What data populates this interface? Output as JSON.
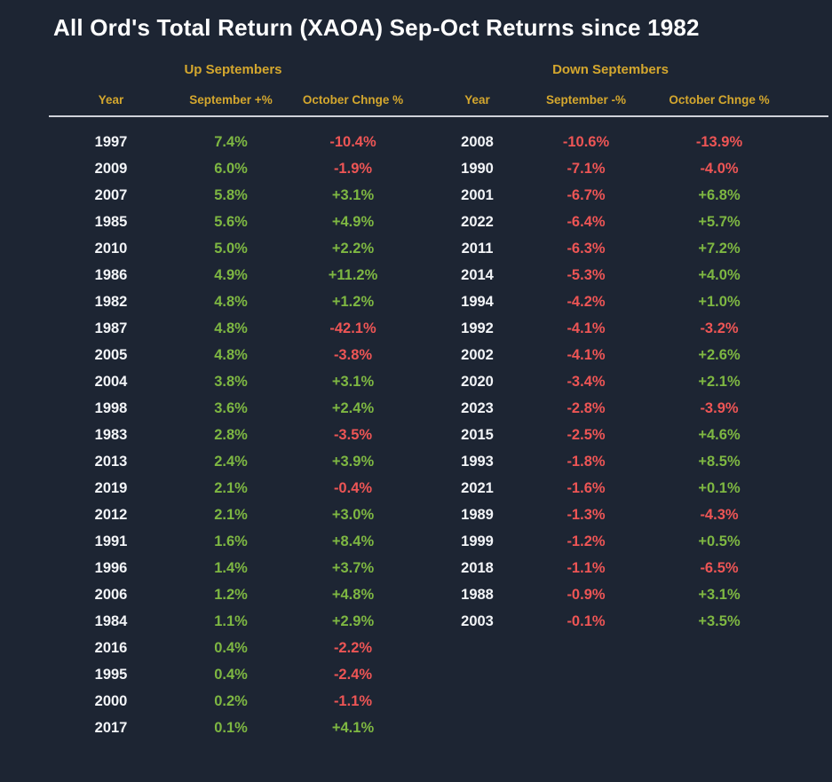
{
  "title": "All Ord's Total Return (XAOA) Sep-Oct Returns since 1982",
  "colors": {
    "background": "#1d2533",
    "title": "#ffffff",
    "gold": "#d4a72e",
    "green": "#7eb742",
    "red": "#ed5555",
    "year": "#f2f4f7",
    "rule": "#cfd2d9"
  },
  "chart_data": {
    "type": "table",
    "title": "All Ord's Total Return (XAOA) Sep-Oct Returns since 1982",
    "layout": {
      "grid": false,
      "sections_side_by_side": true
    },
    "sections": [
      {
        "name": "Up Septembers",
        "columns": [
          "Year",
          "September +%",
          "October Chnge %"
        ],
        "rows": [
          {
            "year": "1997",
            "september": "7.4%",
            "october": "-10.4%"
          },
          {
            "year": "2009",
            "september": "6.0%",
            "october": "-1.9%"
          },
          {
            "year": "2007",
            "september": "5.8%",
            "october": "+3.1%"
          },
          {
            "year": "1985",
            "september": "5.6%",
            "october": "+4.9%"
          },
          {
            "year": "2010",
            "september": "5.0%",
            "october": "+2.2%"
          },
          {
            "year": "1986",
            "september": "4.9%",
            "october": "+11.2%"
          },
          {
            "year": "1982",
            "september": "4.8%",
            "october": "+1.2%"
          },
          {
            "year": "1987",
            "september": "4.8%",
            "october": "-42.1%"
          },
          {
            "year": "2005",
            "september": "4.8%",
            "october": "-3.8%"
          },
          {
            "year": "2004",
            "september": "3.8%",
            "october": "+3.1%"
          },
          {
            "year": "1998",
            "september": "3.6%",
            "october": "+2.4%"
          },
          {
            "year": "1983",
            "september": "2.8%",
            "october": "-3.5%"
          },
          {
            "year": "2013",
            "september": "2.4%",
            "october": "+3.9%"
          },
          {
            "year": "2019",
            "september": "2.1%",
            "october": "-0.4%"
          },
          {
            "year": "2012",
            "september": "2.1%",
            "october": "+3.0%"
          },
          {
            "year": "1991",
            "september": "1.6%",
            "october": "+8.4%"
          },
          {
            "year": "1996",
            "september": "1.4%",
            "october": "+3.7%"
          },
          {
            "year": "2006",
            "september": "1.2%",
            "october": "+4.8%"
          },
          {
            "year": "1984",
            "september": "1.1%",
            "october": "+2.9%"
          },
          {
            "year": "2016",
            "september": "0.4%",
            "october": "-2.2%"
          },
          {
            "year": "1995",
            "september": "0.4%",
            "october": "-2.4%"
          },
          {
            "year": "2000",
            "september": "0.2%",
            "october": "-1.1%"
          },
          {
            "year": "2017",
            "september": "0.1%",
            "october": "+4.1%"
          }
        ]
      },
      {
        "name": "Down Septembers",
        "columns": [
          "Year",
          "September -%",
          "October Chnge %"
        ],
        "rows": [
          {
            "year": "2008",
            "september": "-10.6%",
            "october": "-13.9%"
          },
          {
            "year": "1990",
            "september": "-7.1%",
            "october": "-4.0%"
          },
          {
            "year": "2001",
            "september": "-6.7%",
            "october": "+6.8%"
          },
          {
            "year": "2022",
            "september": "-6.4%",
            "october": "+5.7%"
          },
          {
            "year": "2011",
            "september": "-6.3%",
            "october": "+7.2%"
          },
          {
            "year": "2014",
            "september": "-5.3%",
            "october": "+4.0%"
          },
          {
            "year": "1994",
            "september": "-4.2%",
            "october": "+1.0%"
          },
          {
            "year": "1992",
            "september": "-4.1%",
            "october": "-3.2%"
          },
          {
            "year": "2002",
            "september": "-4.1%",
            "october": "+2.6%"
          },
          {
            "year": "2020",
            "september": "-3.4%",
            "october": "+2.1%"
          },
          {
            "year": "2023",
            "september": "-2.8%",
            "october": "-3.9%"
          },
          {
            "year": "2015",
            "september": "-2.5%",
            "october": "+4.6%"
          },
          {
            "year": "1993",
            "september": "-1.8%",
            "october": "+8.5%"
          },
          {
            "year": "2021",
            "september": "-1.6%",
            "october": "+0.1%"
          },
          {
            "year": "1989",
            "september": "-1.3%",
            "october": "-4.3%"
          },
          {
            "year": "1999",
            "september": "-1.2%",
            "october": "+0.5%"
          },
          {
            "year": "2018",
            "september": "-1.1%",
            "october": "-6.5%"
          },
          {
            "year": "1988",
            "september": "-0.9%",
            "october": "+3.1%"
          },
          {
            "year": "2003",
            "september": "-0.1%",
            "october": "+3.5%"
          }
        ]
      }
    ]
  }
}
